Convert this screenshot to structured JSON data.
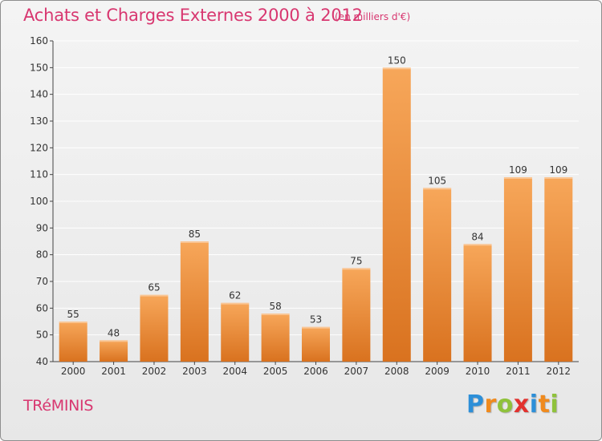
{
  "chart_data": {
    "type": "bar",
    "title": "Achats et Charges Externes 2000 à 2012",
    "subtitle": "(en milliers d'€)",
    "categories": [
      "2000",
      "2001",
      "2002",
      "2003",
      "2004",
      "2005",
      "2006",
      "2007",
      "2008",
      "2009",
      "2010",
      "2011",
      "2012"
    ],
    "values": [
      55,
      48,
      65,
      85,
      62,
      58,
      53,
      75,
      150,
      105,
      84,
      109,
      109
    ],
    "ylim": [
      40,
      160
    ],
    "yticks": [
      40,
      50,
      60,
      70,
      80,
      90,
      100,
      110,
      120,
      130,
      140,
      150,
      160
    ],
    "grid": true,
    "bar_color_top": "#f7a75a",
    "bar_color_bottom": "#d9721f",
    "grid_color": "#ffffff"
  },
  "commune": "TRéMINIS",
  "logo": {
    "letters": [
      "P",
      "r",
      "o",
      "x",
      "i",
      "t",
      "i"
    ],
    "colors": [
      "#2d8fd8",
      "#f08a1d",
      "#8fc23b",
      "#e2312e",
      "#2d8fd8",
      "#f08a1d",
      "#8fc23b"
    ]
  }
}
